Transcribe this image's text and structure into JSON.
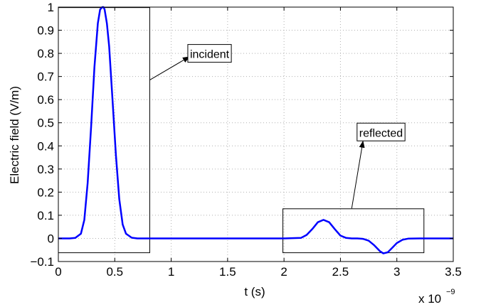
{
  "chart_data": {
    "type": "line",
    "xlabel": "t (s)",
    "ylabel": "Electric field (V/m)",
    "x_exponent_label": "x 10",
    "x_exponent_power": "−9",
    "xlim": [
      0,
      3.5
    ],
    "ylim": [
      -0.1,
      1
    ],
    "grid": true,
    "xticks": [
      0,
      0.5,
      1,
      1.5,
      2,
      2.5,
      3,
      3.5
    ],
    "xtick_labels": [
      "0",
      "0.5",
      "1",
      "1.5",
      "2",
      "2.5",
      "3",
      "3.5"
    ],
    "yticks": [
      -0.1,
      0,
      0.1,
      0.2,
      0.3,
      0.4,
      0.5,
      0.6,
      0.7,
      0.8,
      0.9,
      1
    ],
    "ytick_labels": [
      "−0.1",
      "0",
      "0.1",
      "0.2",
      "0.3",
      "0.4",
      "0.5",
      "0.6",
      "0.7",
      "0.8",
      "0.9",
      "1"
    ],
    "series": [
      {
        "color": "#0000ff",
        "x": [
          0,
          0.1,
          0.15,
          0.2,
          0.23,
          0.26,
          0.29,
          0.32,
          0.35,
          0.37,
          0.39,
          0.4,
          0.41,
          0.43,
          0.45,
          0.48,
          0.51,
          0.54,
          0.57,
          0.6,
          0.65,
          0.7,
          1.0,
          1.5,
          2.0,
          2.15,
          2.2,
          2.25,
          2.3,
          2.35,
          2.4,
          2.45,
          2.5,
          2.55,
          2.6,
          2.65,
          2.7,
          2.75,
          2.8,
          2.85,
          2.88,
          2.92,
          2.96,
          3.0,
          3.05,
          3.1,
          3.2,
          3.5
        ],
        "y": [
          0,
          0,
          0.002,
          0.02,
          0.08,
          0.24,
          0.48,
          0.74,
          0.93,
          0.99,
          1.0,
          1.0,
          0.99,
          0.93,
          0.83,
          0.6,
          0.36,
          0.17,
          0.06,
          0.02,
          0.003,
          0,
          0,
          0,
          0,
          0.002,
          0.015,
          0.04,
          0.07,
          0.08,
          0.07,
          0.04,
          0.012,
          0.002,
          0,
          0,
          -0.002,
          -0.01,
          -0.03,
          -0.055,
          -0.065,
          -0.06,
          -0.04,
          -0.02,
          -0.006,
          -0.001,
          0,
          0
        ]
      }
    ],
    "boxes": [
      {
        "x": [
          0,
          0.81
        ],
        "y": [
          -0.062,
          0.998
        ]
      },
      {
        "x": [
          1.99,
          3.24
        ],
        "y": [
          -0.062,
          0.128
        ]
      }
    ],
    "annotations": [
      {
        "text": "incident",
        "x": 1.16,
        "y": 0.78,
        "arrow_from": [
          0.81,
          0.685
        ],
        "arrow_to": [
          1.16,
          0.785
        ]
      },
      {
        "text": "reflected",
        "x": 2.66,
        "y": 0.44,
        "arrow_from": [
          2.6,
          0.13
        ],
        "arrow_to": [
          2.7,
          0.42
        ]
      }
    ]
  }
}
